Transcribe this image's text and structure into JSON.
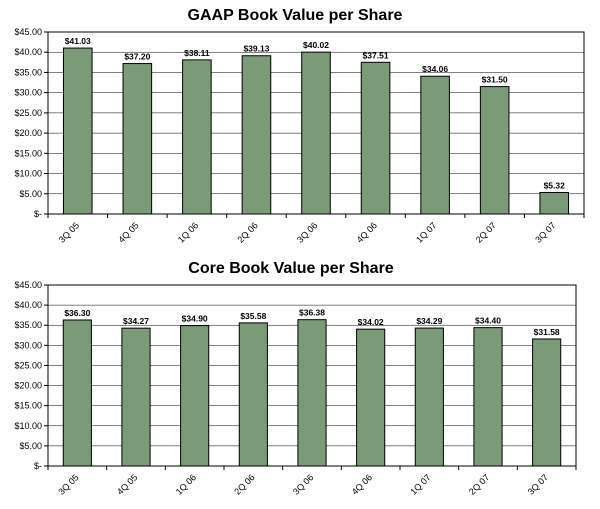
{
  "chart_data": [
    {
      "type": "bar",
      "title": "GAAP Book Value per Share",
      "categories": [
        "3Q 05",
        "4Q 05",
        "1Q 06",
        "2Q 06",
        "3Q 06",
        "4Q 06",
        "1Q 07",
        "2Q 07",
        "3Q 07"
      ],
      "values": [
        41.03,
        37.2,
        38.11,
        39.13,
        40.02,
        37.51,
        34.06,
        31.5,
        5.32
      ],
      "data_labels": [
        "$41.03",
        "$37.20",
        "$38.11",
        "$39.13",
        "$40.02",
        "$37.51",
        "$34.06",
        "$31.50",
        "$5.32"
      ],
      "yticks": [
        "$-",
        "$5.00",
        "$10.00",
        "$15.00",
        "$20.00",
        "$25.00",
        "$30.00",
        "$35.00",
        "$40.00",
        "$45.00"
      ],
      "ylim": [
        0,
        45
      ],
      "grid": true,
      "bar_color": "#7b9a78"
    },
    {
      "type": "bar",
      "title": "Core Book Value per Share",
      "categories": [
        "3Q 05",
        "4Q 05",
        "1Q 06",
        "2Q 06",
        "3Q 06",
        "4Q 06",
        "1Q 07",
        "2Q 07",
        "3Q 07"
      ],
      "values": [
        36.3,
        34.27,
        34.9,
        35.58,
        36.38,
        34.02,
        34.29,
        34.4,
        31.58
      ],
      "data_labels": [
        "$36.30",
        "$34.27",
        "$34.90",
        "$35.58",
        "$36.38",
        "$34.02",
        "$34.29",
        "$34.40",
        "$31.58"
      ],
      "yticks": [
        "$-",
        "$5.00",
        "$10.00",
        "$15.00",
        "$20.00",
        "$25.00",
        "$30.00",
        "$35.00",
        "$40.00",
        "$45.00"
      ],
      "ylim": [
        0,
        45
      ],
      "grid": true,
      "bar_color": "#7b9a78"
    }
  ]
}
